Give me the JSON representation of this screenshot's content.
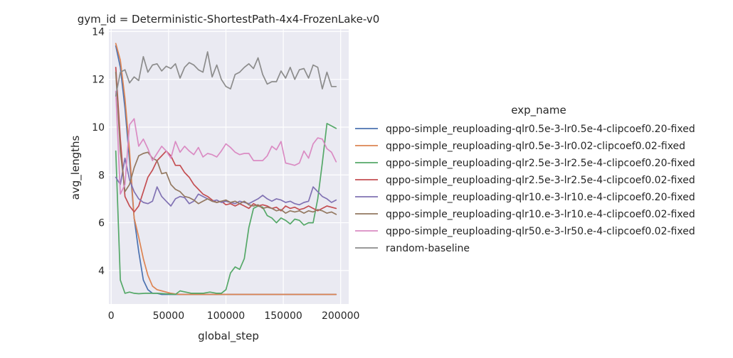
{
  "chart_data": {
    "type": "line",
    "title": "gym_id = Deterministic-ShortestPath-4x4-FrozenLake-v0",
    "xlabel": "global_step",
    "ylabel": "avg_lengths",
    "xlim": [
      -2000,
      207000
    ],
    "ylim": [
      2.6,
      14.1
    ],
    "xticks": [
      0,
      50000,
      100000,
      150000,
      200000
    ],
    "xtick_labels": [
      "0",
      "50000",
      "100000",
      "150000",
      "200000"
    ],
    "yticks": [
      4,
      6,
      8,
      10,
      12,
      14
    ],
    "ytick_labels": [
      "4",
      "6",
      "8",
      "10",
      "12",
      "14"
    ],
    "grid": true,
    "legend_title": "exp_name",
    "legend_position": "right",
    "series": [
      {
        "name": "qppo-simple_reuploading-qlr0.5e-3-lr0.5e-4-clipcoef0.20-fixed",
        "color": "#4c72b0",
        "x": [
          4000,
          8000,
          12000,
          16000,
          20000,
          24000,
          28000,
          32000,
          36000,
          40000,
          44000,
          48000,
          52000,
          56000,
          60000,
          70000,
          80000,
          90000,
          100000,
          110000,
          120000,
          130000,
          140000,
          150000,
          160000,
          170000,
          180000,
          190000,
          196000
        ],
        "values": [
          13.4,
          12.5,
          10.8,
          8.6,
          6.2,
          4.8,
          3.6,
          3.2,
          3.05,
          3.05,
          3.0,
          3.0,
          3.0,
          3.0,
          3.0,
          3.0,
          3.0,
          3.0,
          3.0,
          3.0,
          3.0,
          3.0,
          3.0,
          3.0,
          3.0,
          3.0,
          3.0,
          3.0,
          3.0
        ]
      },
      {
        "name": "qppo-simple_reuploading-qlr0.5e-3-lr0.02-clipcoef0.02-fixed",
        "color": "#dd8452",
        "x": [
          4000,
          8000,
          12000,
          16000,
          20000,
          24000,
          28000,
          32000,
          36000,
          40000,
          44000,
          48000,
          52000,
          56000,
          60000,
          70000,
          80000,
          90000,
          100000,
          110000,
          120000,
          130000,
          140000,
          150000,
          160000,
          170000,
          180000,
          190000,
          196000
        ],
        "values": [
          13.5,
          12.8,
          11.2,
          9.0,
          6.2,
          5.4,
          4.5,
          3.8,
          3.35,
          3.2,
          3.15,
          3.1,
          3.05,
          3.02,
          3.0,
          3.0,
          3.0,
          3.0,
          3.0,
          3.0,
          3.0,
          3.0,
          3.0,
          3.0,
          3.0,
          3.0,
          3.0,
          3.0,
          3.0
        ]
      },
      {
        "name": "qppo-simple_reuploading-qlr2.5e-3-lr2.5e-4-clipcoef0.20-fixed",
        "color": "#55a868",
        "x": [
          4000,
          8000,
          12000,
          16000,
          20000,
          24000,
          30000,
          40000,
          50000,
          56000,
          60000,
          70000,
          80000,
          86000,
          92000,
          96000,
          100000,
          104000,
          108000,
          112000,
          116000,
          120000,
          124000,
          128000,
          132000,
          136000,
          140000,
          144000,
          148000,
          152000,
          156000,
          160000,
          164000,
          168000,
          172000,
          176000,
          180000,
          184000,
          188000,
          196000
        ],
        "values": [
          9.0,
          3.6,
          3.05,
          3.1,
          3.05,
          3.03,
          3.05,
          3.05,
          3.02,
          3.0,
          3.15,
          3.05,
          3.05,
          3.1,
          3.05,
          3.05,
          3.2,
          3.9,
          4.15,
          4.05,
          4.5,
          5.8,
          6.6,
          6.7,
          6.65,
          6.3,
          6.2,
          6.0,
          6.2,
          6.1,
          5.95,
          6.15,
          6.1,
          5.9,
          6.0,
          6.0,
          7.0,
          8.5,
          10.15,
          9.95
        ]
      },
      {
        "name": "qppo-simple_reuploading-qlr2.5e-3-lr2.5e-4-clipcoef0.02-fixed",
        "color": "#c44e52",
        "x": [
          4000,
          8000,
          12000,
          16000,
          20000,
          24000,
          28000,
          32000,
          36000,
          40000,
          44000,
          48000,
          52000,
          56000,
          60000,
          64000,
          68000,
          72000,
          76000,
          80000,
          84000,
          88000,
          92000,
          96000,
          100000,
          104000,
          108000,
          112000,
          116000,
          120000,
          124000,
          128000,
          132000,
          136000,
          140000,
          144000,
          148000,
          152000,
          156000,
          160000,
          164000,
          168000,
          172000,
          176000,
          180000,
          184000,
          188000,
          192000,
          196000
        ],
        "values": [
          12.5,
          9.5,
          7.1,
          6.7,
          6.45,
          6.7,
          7.3,
          7.9,
          8.2,
          8.6,
          8.8,
          9.0,
          8.8,
          8.4,
          8.4,
          8.1,
          7.9,
          7.6,
          7.4,
          7.2,
          7.1,
          6.95,
          6.85,
          6.9,
          6.75,
          6.8,
          6.7,
          6.8,
          6.7,
          6.6,
          6.8,
          6.7,
          6.75,
          6.7,
          6.6,
          6.65,
          6.5,
          6.7,
          6.6,
          6.65,
          6.55,
          6.6,
          6.7,
          6.6,
          6.5,
          6.6,
          6.7,
          6.65,
          6.6
        ]
      },
      {
        "name": "qppo-simple_reuploading-qlr10.e-3-lr10.e-4-clipcoef0.20-fixed",
        "color": "#8172b3",
        "x": [
          4000,
          8000,
          12000,
          16000,
          20000,
          24000,
          28000,
          32000,
          36000,
          40000,
          44000,
          48000,
          52000,
          56000,
          60000,
          64000,
          68000,
          72000,
          76000,
          80000,
          84000,
          88000,
          92000,
          96000,
          100000,
          104000,
          108000,
          112000,
          116000,
          120000,
          124000,
          128000,
          132000,
          136000,
          140000,
          144000,
          148000,
          152000,
          156000,
          160000,
          164000,
          168000,
          172000,
          176000,
          180000,
          184000,
          188000,
          192000,
          196000
        ],
        "values": [
          7.9,
          7.6,
          8.7,
          7.8,
          7.3,
          7.0,
          6.85,
          6.8,
          6.9,
          7.5,
          7.1,
          6.9,
          6.7,
          7.0,
          7.1,
          7.05,
          6.8,
          6.9,
          7.2,
          7.1,
          7.0,
          6.9,
          6.95,
          6.85,
          6.9,
          6.85,
          6.8,
          6.9,
          6.85,
          6.8,
          6.9,
          7.0,
          7.15,
          7.0,
          6.9,
          7.0,
          6.95,
          6.85,
          6.9,
          6.8,
          6.75,
          6.85,
          6.9,
          7.5,
          7.3,
          7.1,
          7.0,
          6.85,
          6.95
        ]
      },
      {
        "name": "qppo-simple_reuploading-qlr10.e-3-lr10.e-4-clipcoef0.02-fixed",
        "color": "#937860",
        "x": [
          4000,
          8000,
          12000,
          16000,
          20000,
          24000,
          28000,
          32000,
          36000,
          40000,
          44000,
          48000,
          52000,
          56000,
          60000,
          64000,
          68000,
          72000,
          76000,
          80000,
          84000,
          88000,
          92000,
          96000,
          100000,
          104000,
          108000,
          112000,
          116000,
          120000,
          124000,
          128000,
          132000,
          136000,
          140000,
          144000,
          148000,
          152000,
          156000,
          160000,
          164000,
          168000,
          172000,
          176000,
          180000,
          184000,
          188000,
          192000,
          196000
        ],
        "values": [
          12.3,
          9.0,
          7.3,
          7.6,
          8.3,
          8.8,
          8.9,
          8.95,
          8.7,
          8.6,
          8.05,
          8.1,
          7.6,
          7.4,
          7.3,
          7.1,
          7.05,
          6.95,
          6.8,
          6.9,
          7.0,
          6.9,
          6.85,
          6.9,
          6.95,
          6.85,
          6.9,
          6.8,
          6.9,
          6.75,
          6.7,
          6.75,
          6.6,
          6.65,
          6.6,
          6.5,
          6.55,
          6.4,
          6.5,
          6.45,
          6.5,
          6.4,
          6.5,
          6.45,
          6.55,
          6.5,
          6.4,
          6.45,
          6.35
        ]
      },
      {
        "name": "qppo-simple_reuploading-qlr50.e-3-lr50.e-4-clipcoef0.02-fixed",
        "color": "#da8bc3",
        "x": [
          4000,
          8000,
          12000,
          16000,
          20000,
          24000,
          28000,
          32000,
          36000,
          40000,
          44000,
          48000,
          52000,
          56000,
          60000,
          64000,
          68000,
          72000,
          76000,
          80000,
          84000,
          88000,
          92000,
          96000,
          100000,
          104000,
          108000,
          112000,
          116000,
          120000,
          124000,
          128000,
          132000,
          136000,
          140000,
          144000,
          148000,
          152000,
          156000,
          160000,
          164000,
          168000,
          172000,
          176000,
          180000,
          184000,
          188000,
          192000,
          196000
        ],
        "values": [
          11.5,
          7.2,
          7.6,
          10.1,
          10.35,
          9.2,
          9.5,
          9.1,
          8.6,
          8.9,
          9.2,
          9.0,
          8.7,
          9.4,
          8.95,
          9.2,
          9.0,
          8.85,
          9.15,
          8.75,
          8.9,
          8.85,
          8.75,
          9.0,
          9.3,
          9.15,
          8.95,
          8.85,
          8.9,
          8.9,
          8.6,
          8.6,
          8.6,
          8.8,
          9.2,
          9.05,
          9.4,
          8.5,
          8.45,
          8.4,
          8.5,
          9.0,
          8.7,
          9.3,
          9.55,
          9.5,
          9.1,
          8.95,
          8.55
        ]
      },
      {
        "name": "random-baseline",
        "color": "#8c8c8c",
        "x": [
          4000,
          8000,
          12000,
          16000,
          20000,
          24000,
          28000,
          32000,
          36000,
          40000,
          44000,
          48000,
          52000,
          56000,
          60000,
          64000,
          68000,
          72000,
          76000,
          80000,
          84000,
          88000,
          92000,
          96000,
          100000,
          104000,
          108000,
          112000,
          116000,
          120000,
          124000,
          128000,
          132000,
          136000,
          140000,
          144000,
          148000,
          152000,
          156000,
          160000,
          164000,
          168000,
          172000,
          176000,
          180000,
          184000,
          188000,
          192000,
          196000
        ],
        "values": [
          11.3,
          12.3,
          12.4,
          11.85,
          12.1,
          11.95,
          12.95,
          12.3,
          12.6,
          12.65,
          12.35,
          12.55,
          12.45,
          12.65,
          12.05,
          12.5,
          12.7,
          12.6,
          12.4,
          12.3,
          13.15,
          12.1,
          12.6,
          12.0,
          11.7,
          11.6,
          12.2,
          12.3,
          12.5,
          12.65,
          12.45,
          12.9,
          12.2,
          11.8,
          11.9,
          11.9,
          12.35,
          12.05,
          12.5,
          12.0,
          12.4,
          12.45,
          12.05,
          12.6,
          12.5,
          11.6,
          12.3,
          11.7,
          11.7
        ]
      }
    ]
  }
}
